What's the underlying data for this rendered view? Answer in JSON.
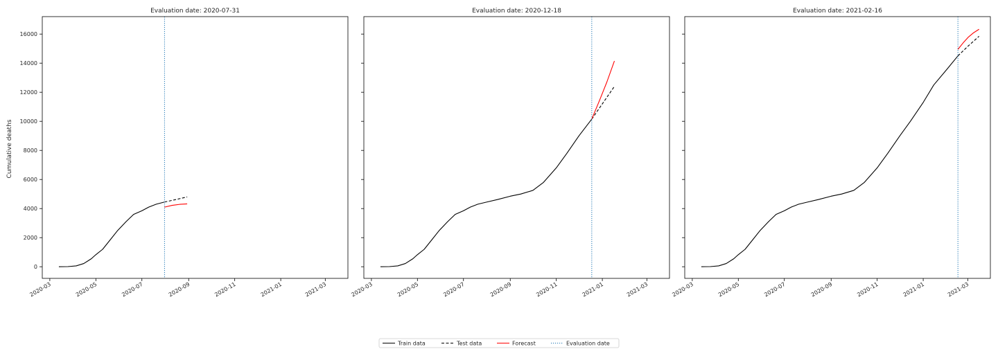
{
  "figure": {
    "ylabel": "Cumulative deaths"
  },
  "chart_data": [
    {
      "type": "line",
      "title": "Evaluation date: 2020-07-31",
      "evaluation_date": "2020-07-31",
      "xlim": [
        "2020-02-20",
        "2021-03-31"
      ],
      "ylim": [
        -800,
        17200
      ],
      "x_ticks": [
        "2020-03",
        "2020-05",
        "2020-07",
        "2020-09",
        "2020-11",
        "2021-01",
        "2021-03"
      ],
      "y_ticks": [
        0,
        2000,
        4000,
        6000,
        8000,
        10000,
        12000,
        14000,
        16000
      ],
      "series": [
        {
          "name": "Train data",
          "color": "#000000",
          "dash": "solid",
          "x": [
            "2020-03-13",
            "2020-03-25",
            "2020-04-05",
            "2020-04-15",
            "2020-04-25",
            "2020-05-01",
            "2020-05-10",
            "2020-05-20",
            "2020-05-30",
            "2020-06-10",
            "2020-06-20",
            "2020-07-01",
            "2020-07-10",
            "2020-07-20",
            "2020-07-31"
          ],
          "y": [
            0,
            10,
            60,
            220,
            550,
            830,
            1200,
            1850,
            2500,
            3100,
            3600,
            3850,
            4100,
            4300,
            4450
          ]
        },
        {
          "name": "Test data",
          "color": "#000000",
          "dash": "dashed",
          "x": [
            "2020-07-31",
            "2020-08-15",
            "2020-08-30"
          ],
          "y": [
            4450,
            4620,
            4800
          ]
        },
        {
          "name": "Forecast",
          "color": "#ff0000",
          "dash": "solid",
          "x": [
            "2020-07-31",
            "2020-08-10",
            "2020-08-20",
            "2020-08-30"
          ],
          "y": [
            4100,
            4220,
            4290,
            4320
          ]
        }
      ]
    },
    {
      "type": "line",
      "title": "Evaluation date: 2020-12-18",
      "evaluation_date": "2020-12-18",
      "xlim": [
        "2020-02-20",
        "2021-03-31"
      ],
      "ylim": [
        -800,
        17200
      ],
      "x_ticks": [
        "2020-03",
        "2020-05",
        "2020-07",
        "2020-09",
        "2020-11",
        "2021-01",
        "2021-03"
      ],
      "y_ticks": [
        0,
        2000,
        4000,
        6000,
        8000,
        10000,
        12000,
        14000,
        16000
      ],
      "series": [
        {
          "name": "Train data",
          "color": "#000000",
          "dash": "solid",
          "x": [
            "2020-03-13",
            "2020-03-25",
            "2020-04-05",
            "2020-04-15",
            "2020-04-25",
            "2020-05-01",
            "2020-05-10",
            "2020-05-20",
            "2020-05-30",
            "2020-06-10",
            "2020-06-20",
            "2020-07-01",
            "2020-07-10",
            "2020-07-20",
            "2020-08-01",
            "2020-08-15",
            "2020-09-01",
            "2020-09-15",
            "2020-10-01",
            "2020-10-15",
            "2020-11-01",
            "2020-11-15",
            "2020-12-01",
            "2020-12-18"
          ],
          "y": [
            0,
            10,
            60,
            220,
            550,
            830,
            1200,
            1850,
            2500,
            3100,
            3600,
            3850,
            4100,
            4300,
            4450,
            4620,
            4850,
            5000,
            5250,
            5800,
            6800,
            7800,
            9000,
            10150
          ]
        },
        {
          "name": "Test data",
          "color": "#000000",
          "dash": "dashed",
          "x": [
            "2020-12-18",
            "2021-01-01",
            "2021-01-17"
          ],
          "y": [
            10150,
            11200,
            12400
          ]
        },
        {
          "name": "Forecast",
          "color": "#ff0000",
          "dash": "solid",
          "x": [
            "2020-12-18",
            "2020-12-28",
            "2021-01-07",
            "2021-01-17"
          ],
          "y": [
            10150,
            11400,
            12700,
            14150
          ]
        }
      ]
    },
    {
      "type": "line",
      "title": "Evaluation date: 2021-02-16",
      "evaluation_date": "2021-02-16",
      "xlim": [
        "2020-02-20",
        "2021-03-31"
      ],
      "ylim": [
        -800,
        17200
      ],
      "x_ticks": [
        "2020-03",
        "2020-05",
        "2020-07",
        "2020-09",
        "2020-11",
        "2021-01",
        "2021-03"
      ],
      "y_ticks": [
        0,
        2000,
        4000,
        6000,
        8000,
        10000,
        12000,
        14000,
        16000
      ],
      "series": [
        {
          "name": "Train data",
          "color": "#000000",
          "dash": "solid",
          "x": [
            "2020-03-13",
            "2020-03-25",
            "2020-04-05",
            "2020-04-15",
            "2020-04-25",
            "2020-05-01",
            "2020-05-10",
            "2020-05-20",
            "2020-05-30",
            "2020-06-10",
            "2020-06-20",
            "2020-07-01",
            "2020-07-10",
            "2020-07-20",
            "2020-08-01",
            "2020-08-15",
            "2020-09-01",
            "2020-09-15",
            "2020-10-01",
            "2020-10-15",
            "2020-11-01",
            "2020-11-15",
            "2020-12-01",
            "2020-12-15",
            "2021-01-01",
            "2021-01-15",
            "2021-02-01",
            "2021-02-16"
          ],
          "y": [
            0,
            10,
            60,
            220,
            550,
            830,
            1200,
            1850,
            2500,
            3100,
            3600,
            3850,
            4100,
            4300,
            4450,
            4620,
            4850,
            5000,
            5250,
            5800,
            6800,
            7800,
            9000,
            10000,
            11300,
            12500,
            13550,
            14500
          ]
        },
        {
          "name": "Test data",
          "color": "#000000",
          "dash": "dashed",
          "x": [
            "2021-02-16",
            "2021-03-01",
            "2021-03-16"
          ],
          "y": [
            14500,
            15150,
            15850
          ]
        },
        {
          "name": "Forecast",
          "color": "#ff0000",
          "dash": "solid",
          "x": [
            "2021-02-16",
            "2021-02-23",
            "2021-03-02",
            "2021-03-09",
            "2021-03-16"
          ],
          "y": [
            14950,
            15400,
            15800,
            16100,
            16330
          ]
        }
      ]
    }
  ],
  "legend": {
    "placement": "bottom-center",
    "items": [
      {
        "label": "Train data",
        "color": "#000000",
        "dash": "solid"
      },
      {
        "label": "Test data",
        "color": "#000000",
        "dash": "dashed"
      },
      {
        "label": "Forecast",
        "color": "#ff0000",
        "dash": "solid"
      },
      {
        "label": "Evaluation date",
        "color": "#1f77b4",
        "dash": "dotted"
      }
    ]
  }
}
